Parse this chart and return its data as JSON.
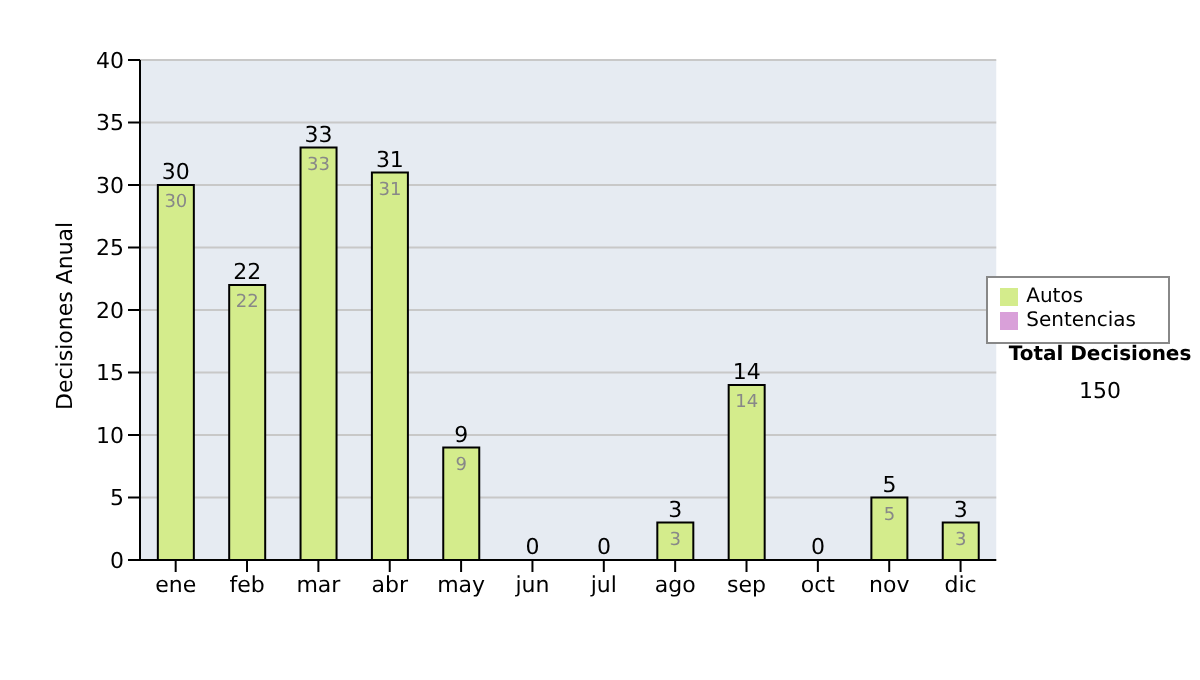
{
  "chart_data": {
    "type": "bar",
    "stacked": true,
    "categories": [
      "ene",
      "feb",
      "mar",
      "abr",
      "may",
      "jun",
      "jul",
      "ago",
      "sep",
      "oct",
      "nov",
      "dic"
    ],
    "series": [
      {
        "name": "Sentencias",
        "color": "#d9a0d9",
        "values": [
          0,
          0,
          0,
          0,
          0,
          0,
          0,
          0,
          0,
          0,
          0,
          0
        ]
      },
      {
        "name": "Autos",
        "color": "#d4ec8c",
        "values": [
          30,
          22,
          33,
          31,
          9,
          0,
          0,
          3,
          14,
          0,
          5,
          3
        ],
        "value_labels": [
          "30",
          "22",
          "33",
          "31",
          "9",
          null,
          null,
          "3",
          "14",
          null,
          "5",
          "3"
        ]
      }
    ],
    "totals": [
      "30",
      "22",
      "33",
      "31",
      "9",
      "0",
      "0",
      "3",
      "14",
      "0",
      "5",
      "3"
    ],
    "ylabel": "Decisiones Anual",
    "ylim": [
      0,
      40
    ],
    "yticks": [
      0,
      5,
      10,
      15,
      20,
      25,
      30,
      35,
      40
    ],
    "grid": "y",
    "legend": "right",
    "annotations": [
      "Total Decisiones",
      "150"
    ]
  }
}
